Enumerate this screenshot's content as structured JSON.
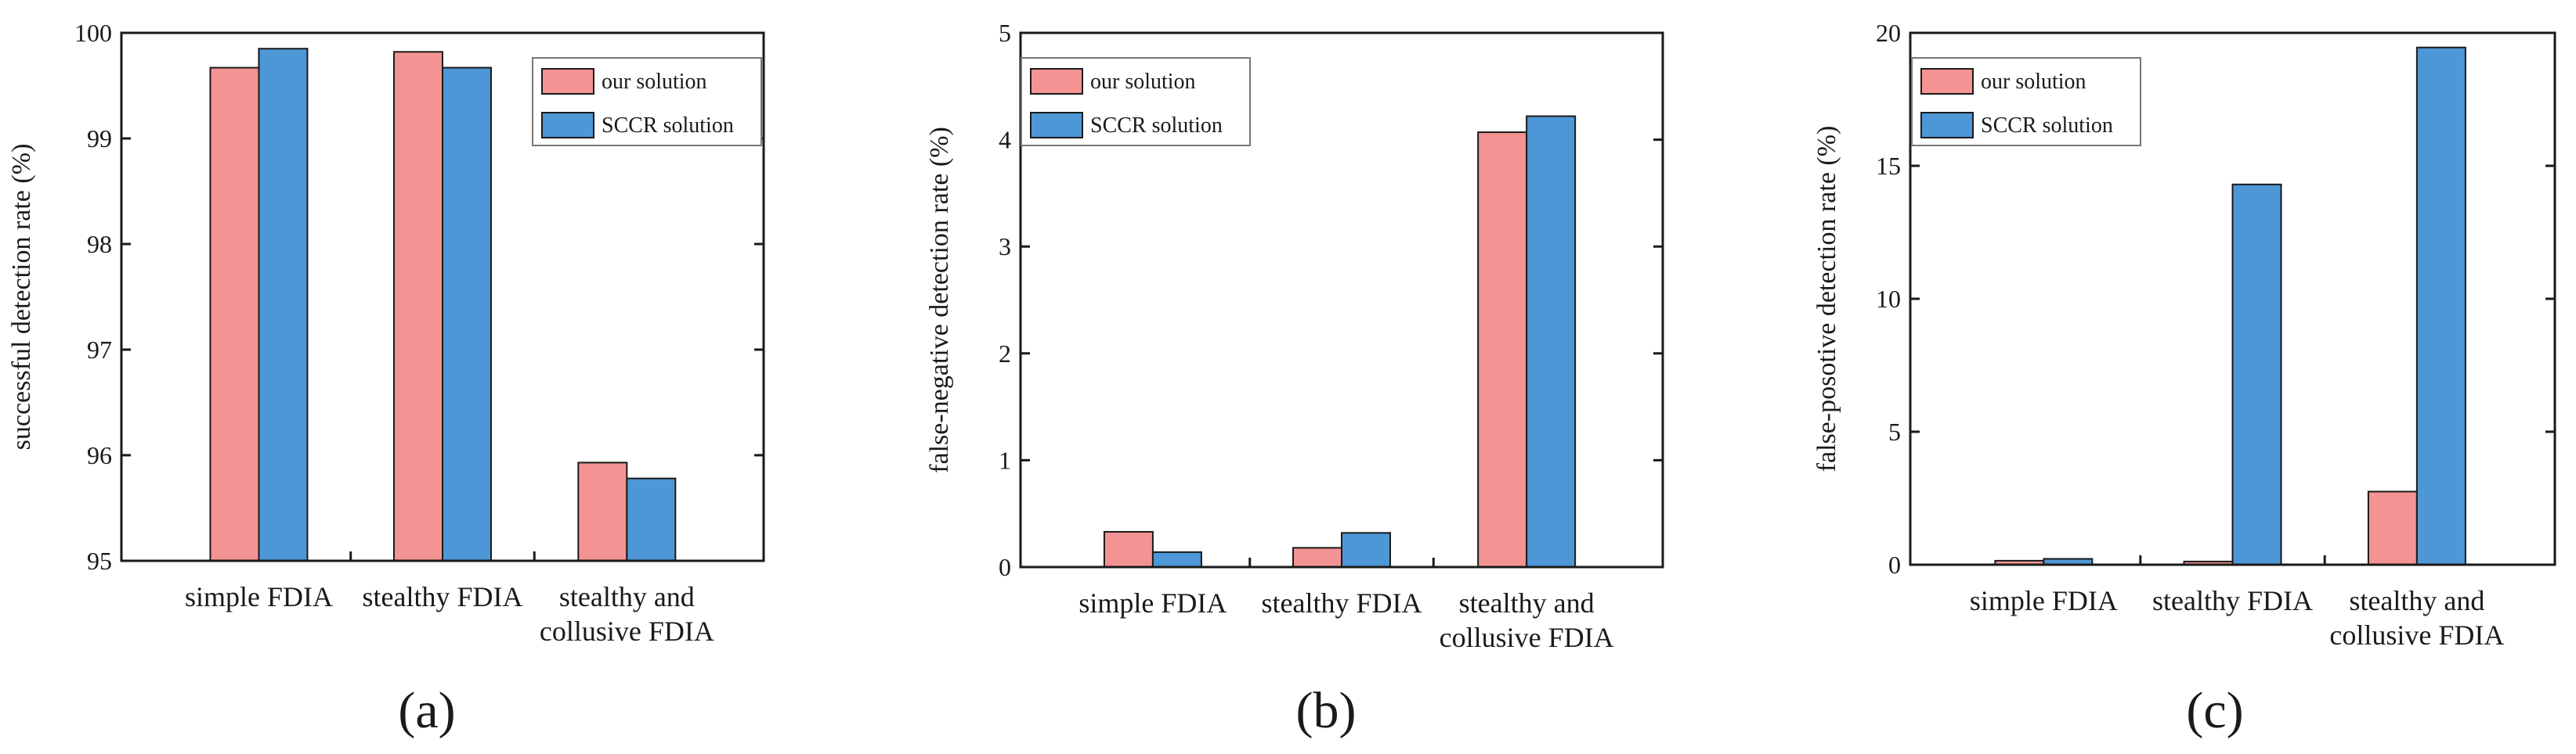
{
  "colors": {
    "our": "#f49393",
    "sccr": "#4d97d6",
    "axis": "#1a1a1a"
  },
  "chart_data": [
    {
      "type": "bar",
      "panel_label": "(a)",
      "categories": [
        [
          "simple FDIA"
        ],
        [
          "stealthy FDIA"
        ],
        [
          "stealthy and",
          "collusive FDIA"
        ]
      ],
      "ylabel": "successful detection rate (%)",
      "ylim": [
        95,
        100
      ],
      "yticks": [
        95,
        96,
        97,
        98,
        99,
        100
      ],
      "legend_position": "top-right",
      "series": [
        {
          "name": "our solution",
          "values": [
            99.67,
            99.82,
            95.93
          ]
        },
        {
          "name": "SCCR solution",
          "values": [
            99.85,
            99.67,
            95.78
          ]
        }
      ]
    },
    {
      "type": "bar",
      "panel_label": "(b)",
      "categories": [
        [
          "simple FDIA"
        ],
        [
          "stealthy FDIA"
        ],
        [
          "stealthy and",
          "collusive FDIA"
        ]
      ],
      "ylabel": "false-negative detection rate (%)",
      "ylim": [
        0,
        5
      ],
      "yticks": [
        0,
        1,
        2,
        3,
        4,
        5
      ],
      "legend_position": "top-left",
      "series": [
        {
          "name": "our solution",
          "values": [
            0.33,
            0.18,
            4.07
          ]
        },
        {
          "name": "SCCR solution",
          "values": [
            0.14,
            0.32,
            4.22
          ]
        }
      ]
    },
    {
      "type": "bar",
      "panel_label": "(c)",
      "categories": [
        [
          "simple FDIA"
        ],
        [
          "stealthy FDIA"
        ],
        [
          "stealthy and",
          "collusive FDIA"
        ]
      ],
      "ylabel": "false-posotive detection rate (%)",
      "ylim": [
        0,
        20
      ],
      "yticks": [
        0,
        5,
        10,
        15,
        20
      ],
      "legend_position": "top-left",
      "series": [
        {
          "name": "our solution",
          "values": [
            0.15,
            0.12,
            2.75
          ]
        },
        {
          "name": "SCCR solution",
          "values": [
            0.22,
            14.3,
            19.45
          ]
        }
      ]
    }
  ]
}
